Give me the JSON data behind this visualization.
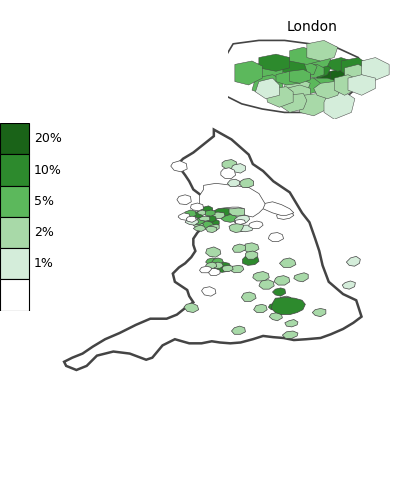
{
  "title": "London",
  "legend_labels": [
    "20%",
    "10%",
    "5%",
    "2%",
    "1%",
    ""
  ],
  "legend_colors": [
    "#1a6318",
    "#2d8a2d",
    "#5cb85c",
    "#a8d9a8",
    "#d4edda",
    "#ffffff"
  ],
  "background_color": "#ffffff",
  "border_color": "#333333",
  "color_thresholds": [
    20,
    10,
    5,
    2,
    1,
    0
  ]
}
